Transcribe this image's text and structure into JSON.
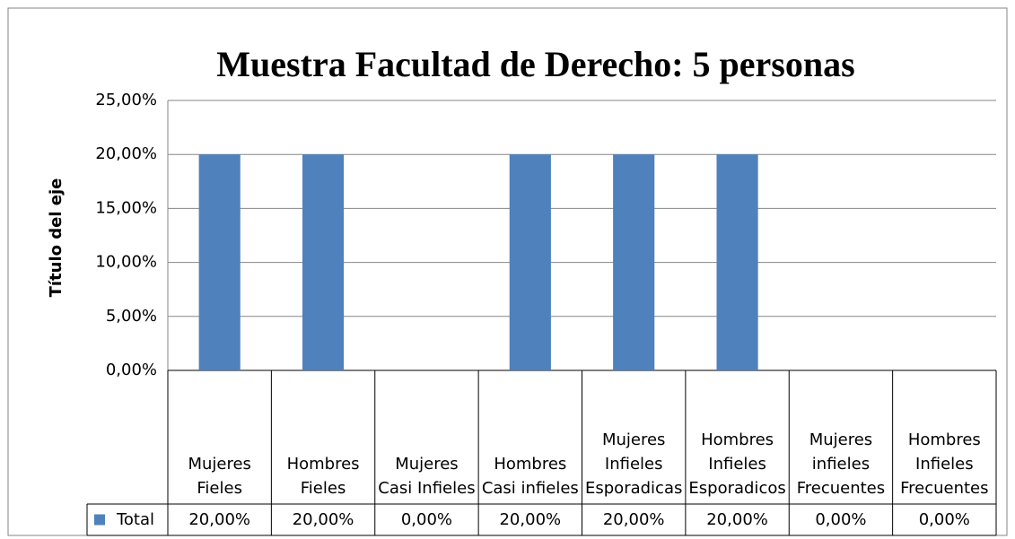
{
  "chart_data": {
    "type": "bar",
    "title": "Muestra Facultad de Derecho: 5 personas",
    "y_axis_label": "Título del eje",
    "categories": [
      "Mujeres Fieles",
      "Hombres Fieles",
      "Mujeres Casi Infieles",
      "Hombres Casi infieles",
      "Mujeres Infieles Esporadicas",
      "Hombres Infieles Esporadicos",
      "Mujeres infieles Frecuentes",
      "Hombres Infieles Frecuentes"
    ],
    "series": [
      {
        "name": "Total",
        "color": "#4f81bd",
        "values": [
          20,
          20,
          0,
          20,
          20,
          20,
          0,
          0
        ],
        "value_labels": [
          "20,00%",
          "20,00%",
          "0,00%",
          "20,00%",
          "20,00%",
          "20,00%",
          "0,00%",
          "0,00%"
        ]
      }
    ],
    "ylim": [
      0,
      25
    ],
    "yticks": [
      {
        "value": 0,
        "label": "0,00%"
      },
      {
        "value": 5,
        "label": "5,00%"
      },
      {
        "value": 10,
        "label": "10,00%"
      },
      {
        "value": 15,
        "label": "15,00%"
      },
      {
        "value": 20,
        "label": "20,00%"
      },
      {
        "value": 25,
        "label": "25,00%"
      }
    ],
    "grid": true,
    "data_table": true
  }
}
